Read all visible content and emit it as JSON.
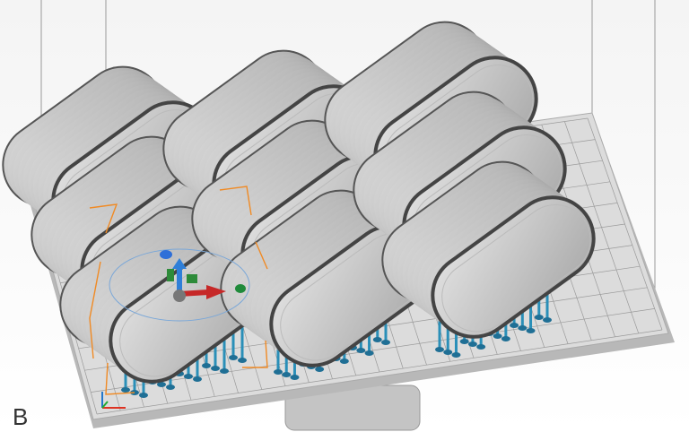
{
  "label": "B"
}
